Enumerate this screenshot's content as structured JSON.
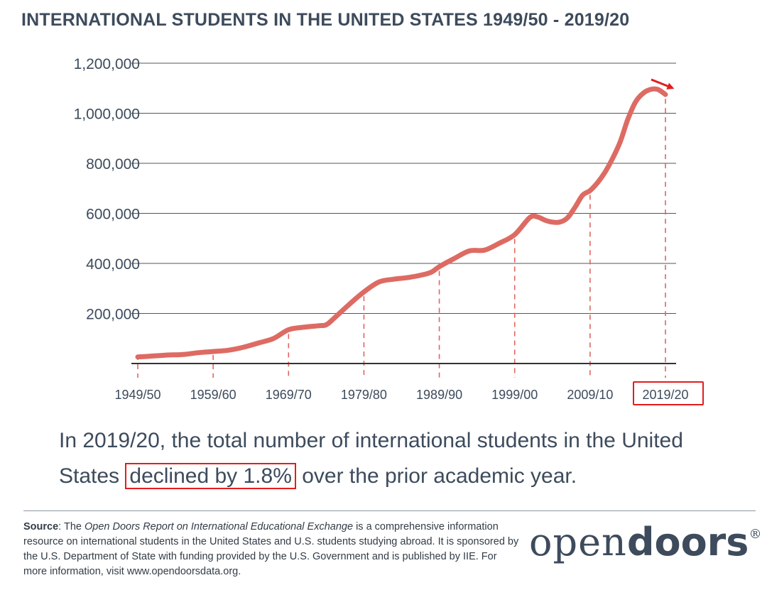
{
  "title": "INTERNATIONAL STUDENTS IN THE UNITED STATES 1949/50 - 2019/20",
  "chart_data": {
    "type": "line",
    "title": "INTERNATIONAL STUDENTS IN THE UNITED STATES 1949/50 - 2019/20",
    "xlabel": "",
    "ylabel": "",
    "ylim": [
      0,
      1200000
    ],
    "grid": true,
    "y_ticks": [
      "200,000",
      "400,000",
      "600,000",
      "800,000",
      "1,000,000",
      "1,200,000"
    ],
    "y_tick_values": [
      200000,
      400000,
      600000,
      800000,
      1000000,
      1200000
    ],
    "x_ticks": [
      "1949/50",
      "1959/60",
      "1969/70",
      "1979/80",
      "1989/90",
      "1999/00",
      "2009/10",
      "2019/20"
    ],
    "x_tick_years": [
      1949,
      1959,
      1969,
      1979,
      1989,
      1999,
      2009,
      2019
    ],
    "highlighted_tick": "2019/20",
    "line_color": "#dd6b63",
    "accent_color": "#e21d1d",
    "series": [
      {
        "x": [
          1949,
          1951,
          1953,
          1955,
          1957,
          1959,
          1961,
          1963,
          1965,
          1967,
          1969,
          1971,
          1973,
          1974,
          1975,
          1977,
          1979,
          1981,
          1983,
          1985,
          1987,
          1988,
          1989,
          1991,
          1993,
          1995,
          1997,
          1999,
          2001,
          2002,
          2003,
          2004,
          2005,
          2006,
          2007,
          2008,
          2009,
          2010,
          2011,
          2012,
          2013,
          2014,
          2015,
          2016,
          2017,
          2018,
          2019
        ],
        "y": [
          26000,
          30000,
          34000,
          36000,
          43000,
          48000,
          53000,
          65000,
          82000,
          100000,
          135000,
          145000,
          151000,
          155000,
          180000,
          235000,
          286000,
          326000,
          337000,
          344000,
          356000,
          366000,
          387000,
          420000,
          450000,
          453000,
          481000,
          515000,
          583000,
          586000,
          573000,
          565000,
          565000,
          582000,
          624000,
          672000,
          691000,
          723000,
          765000,
          820000,
          886000,
          975000,
          1043000,
          1079000,
          1095000,
          1095000,
          1075000
        ]
      }
    ]
  },
  "caption": {
    "before": "In 2019/20, the total number of international students in the United States ",
    "highlight": "declined by 1.8%",
    "after": " over the prior academic year."
  },
  "source": {
    "label": "Source",
    "t1": ": The ",
    "report": "Open Doors Report on International Educational Exchange",
    "t2": " is a comprehensive information resource on international students in the United States and U.S. students studying abroad. It is sponsored by the U.S. Department of State with funding provided by the U.S. Government and is published by IIE. For more information, visit www.opendoorsdata.org."
  },
  "logo": {
    "part1": "open",
    "part2": "doors",
    "mark": "®"
  }
}
